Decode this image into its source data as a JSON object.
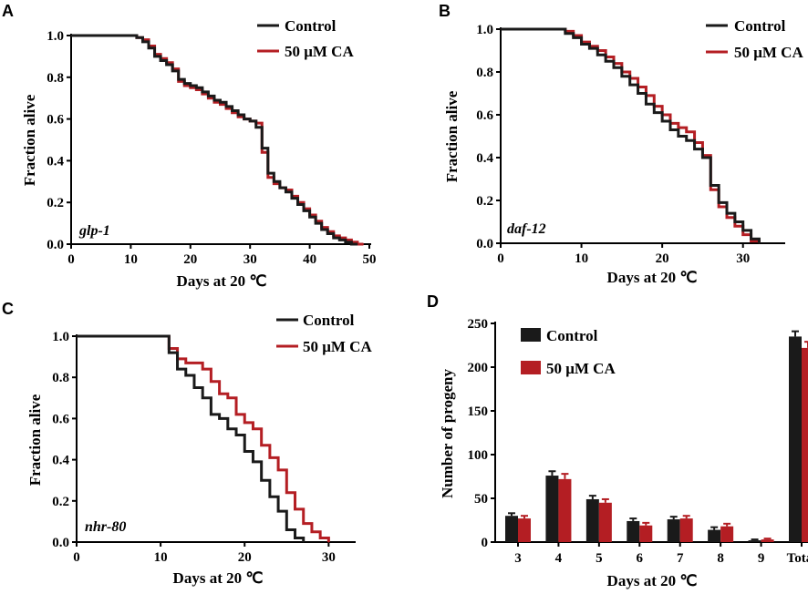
{
  "colors": {
    "control": "#1a1a1a",
    "treatment": "#b41e23",
    "axis": "#000000"
  },
  "chart_data": [
    {
      "panel": "A",
      "type": "line",
      "annotation": "glp-1",
      "xlabel": "Days at 20 ℃",
      "ylabel": "Fraction alive",
      "xlim": [
        0,
        50
      ],
      "ylim": [
        0,
        1.0
      ],
      "xticks": [
        "0",
        "10",
        "20",
        "30",
        "40",
        "50"
      ],
      "yticks": [
        "0.0",
        "0.2",
        "0.4",
        "0.6",
        "0.8",
        "1.0"
      ],
      "legend": [
        "Control",
        "50 μM CA"
      ],
      "series": [
        {
          "name": "Control",
          "x": [
            0,
            11,
            12,
            13,
            14,
            15,
            16,
            17,
            18,
            19,
            20,
            21,
            22,
            23,
            24,
            25,
            26,
            27,
            28,
            29,
            30,
            31,
            32,
            33,
            34,
            35,
            36,
            37,
            38,
            39,
            40,
            41,
            42,
            43,
            44,
            45,
            46,
            47,
            48
          ],
          "y": [
            1.0,
            0.99,
            0.97,
            0.94,
            0.9,
            0.88,
            0.86,
            0.83,
            0.79,
            0.77,
            0.76,
            0.75,
            0.73,
            0.71,
            0.69,
            0.68,
            0.66,
            0.64,
            0.62,
            0.6,
            0.59,
            0.56,
            0.46,
            0.34,
            0.3,
            0.27,
            0.25,
            0.22,
            0.19,
            0.16,
            0.13,
            0.1,
            0.07,
            0.05,
            0.03,
            0.02,
            0.01,
            0.0,
            0.0
          ]
        },
        {
          "name": "50 μM CA",
          "x": [
            0,
            11,
            12,
            13,
            14,
            15,
            16,
            17,
            18,
            19,
            20,
            21,
            22,
            23,
            24,
            25,
            26,
            27,
            28,
            29,
            30,
            31,
            32,
            33,
            34,
            35,
            36,
            37,
            38,
            39,
            40,
            41,
            42,
            43,
            44,
            45,
            46,
            47,
            48,
            49
          ],
          "y": [
            1.0,
            0.99,
            0.98,
            0.95,
            0.91,
            0.89,
            0.87,
            0.84,
            0.78,
            0.76,
            0.75,
            0.74,
            0.72,
            0.7,
            0.68,
            0.67,
            0.65,
            0.63,
            0.61,
            0.6,
            0.59,
            0.58,
            0.44,
            0.32,
            0.29,
            0.27,
            0.26,
            0.23,
            0.2,
            0.17,
            0.14,
            0.11,
            0.08,
            0.06,
            0.04,
            0.03,
            0.02,
            0.01,
            0.0,
            0.0
          ]
        }
      ]
    },
    {
      "panel": "B",
      "type": "line",
      "annotation": "daf-12",
      "xlabel": "Days at 20 ℃",
      "ylabel": "Fraction alive",
      "xlim": [
        0,
        35
      ],
      "ylim": [
        0,
        1.0
      ],
      "xticks": [
        "0",
        "10",
        "20",
        "30"
      ],
      "yticks": [
        "0.0",
        "0.2",
        "0.4",
        "0.6",
        "0.8",
        "1.0"
      ],
      "legend": [
        "Control",
        "50 μM CA"
      ],
      "series": [
        {
          "name": "Control",
          "x": [
            0,
            8,
            9,
            10,
            11,
            12,
            13,
            14,
            15,
            16,
            17,
            18,
            19,
            20,
            21,
            22,
            23,
            24,
            25,
            26,
            27,
            28,
            29,
            30,
            31,
            32
          ],
          "y": [
            1.0,
            0.98,
            0.96,
            0.93,
            0.91,
            0.88,
            0.85,
            0.82,
            0.78,
            0.74,
            0.7,
            0.65,
            0.61,
            0.57,
            0.53,
            0.5,
            0.48,
            0.44,
            0.4,
            0.27,
            0.19,
            0.14,
            0.1,
            0.06,
            0.02,
            0.0
          ]
        },
        {
          "name": "50 μM CA",
          "x": [
            0,
            8,
            9,
            10,
            11,
            12,
            13,
            14,
            15,
            16,
            17,
            18,
            19,
            20,
            21,
            22,
            23,
            24,
            25,
            26,
            27,
            28,
            29,
            30,
            31,
            32
          ],
          "y": [
            1.0,
            0.99,
            0.97,
            0.94,
            0.92,
            0.9,
            0.87,
            0.84,
            0.8,
            0.77,
            0.73,
            0.69,
            0.64,
            0.6,
            0.56,
            0.54,
            0.52,
            0.47,
            0.41,
            0.25,
            0.17,
            0.12,
            0.08,
            0.04,
            0.01,
            0.0
          ]
        }
      ]
    },
    {
      "panel": "C",
      "type": "line",
      "annotation": "nhr-80",
      "xlabel": "Days at 20 ℃",
      "ylabel": "Fraction alive",
      "xlim": [
        0,
        33
      ],
      "ylim": [
        0,
        1.0
      ],
      "xticks": [
        "0",
        "10",
        "20",
        "30"
      ],
      "yticks": [
        "0.0",
        "0.2",
        "0.4",
        "0.6",
        "0.8",
        "1.0"
      ],
      "legend": [
        "Control",
        "50 μM CA"
      ],
      "series": [
        {
          "name": "Control",
          "x": [
            0,
            11,
            12,
            13,
            14,
            15,
            16,
            17,
            18,
            19,
            20,
            21,
            22,
            23,
            24,
            25,
            26,
            27
          ],
          "y": [
            1.0,
            0.92,
            0.84,
            0.81,
            0.75,
            0.7,
            0.62,
            0.6,
            0.55,
            0.52,
            0.44,
            0.39,
            0.3,
            0.22,
            0.15,
            0.06,
            0.02,
            0.0
          ]
        },
        {
          "name": "50 μM CA",
          "x": [
            0,
            11,
            12,
            13,
            14,
            15,
            16,
            17,
            18,
            19,
            20,
            21,
            22,
            23,
            24,
            25,
            26,
            27,
            28,
            29,
            30
          ],
          "y": [
            1.0,
            0.94,
            0.89,
            0.87,
            0.87,
            0.84,
            0.78,
            0.72,
            0.7,
            0.62,
            0.58,
            0.55,
            0.47,
            0.41,
            0.35,
            0.24,
            0.16,
            0.09,
            0.05,
            0.02,
            0.0
          ]
        }
      ]
    },
    {
      "panel": "D",
      "type": "bar",
      "xlabel": "Days at 20 ℃",
      "ylabel": "Number of progeny",
      "ylim": [
        0,
        250
      ],
      "yticks": [
        "0",
        "50",
        "100",
        "150",
        "200",
        "250"
      ],
      "categories": [
        "3",
        "4",
        "5",
        "6",
        "7",
        "8",
        "9",
        "Total"
      ],
      "legend": [
        "Control",
        "50 μM CA"
      ],
      "series": [
        {
          "name": "Control",
          "values": [
            30,
            76,
            49,
            24,
            26,
            14,
            2,
            235
          ],
          "errors": [
            3,
            5,
            4,
            3,
            3,
            3,
            1,
            6
          ]
        },
        {
          "name": "50 μM CA",
          "values": [
            27,
            72,
            45,
            19,
            27,
            18,
            3,
            222
          ],
          "errors": [
            3,
            6,
            4,
            3,
            3,
            3,
            1,
            7
          ]
        }
      ]
    }
  ]
}
